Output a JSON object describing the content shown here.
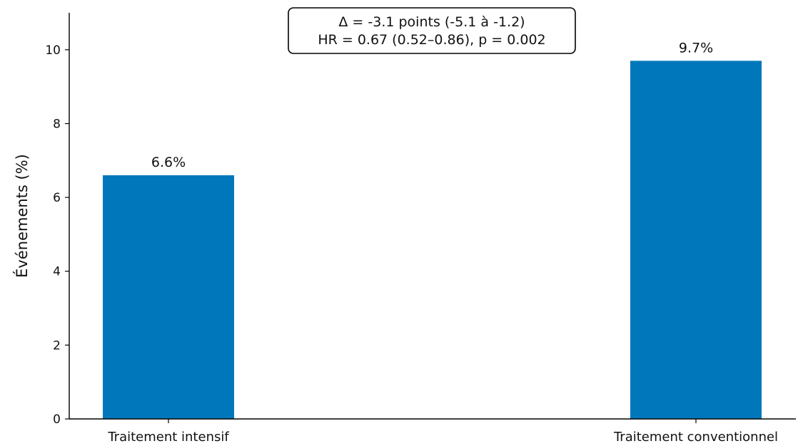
{
  "chart_data": {
    "type": "bar",
    "categories": [
      "Traitement intensif",
      "Traitement conventionnel"
    ],
    "values": [
      6.6,
      9.7
    ],
    "value_labels": [
      "6.6%",
      "9.7%"
    ],
    "title": "",
    "xlabel": "",
    "ylabel": "Événements (%)",
    "ylim": [
      0,
      11
    ],
    "yticks": [
      0,
      2,
      4,
      6,
      8,
      10
    ],
    "grid": false,
    "bar_color": "#0077bb",
    "annotation": {
      "line1": "Δ = -3.1 points (-5.1 à -1.2)",
      "line2": "HR = 0.67 (0.52–0.86), p = 0.002"
    }
  }
}
